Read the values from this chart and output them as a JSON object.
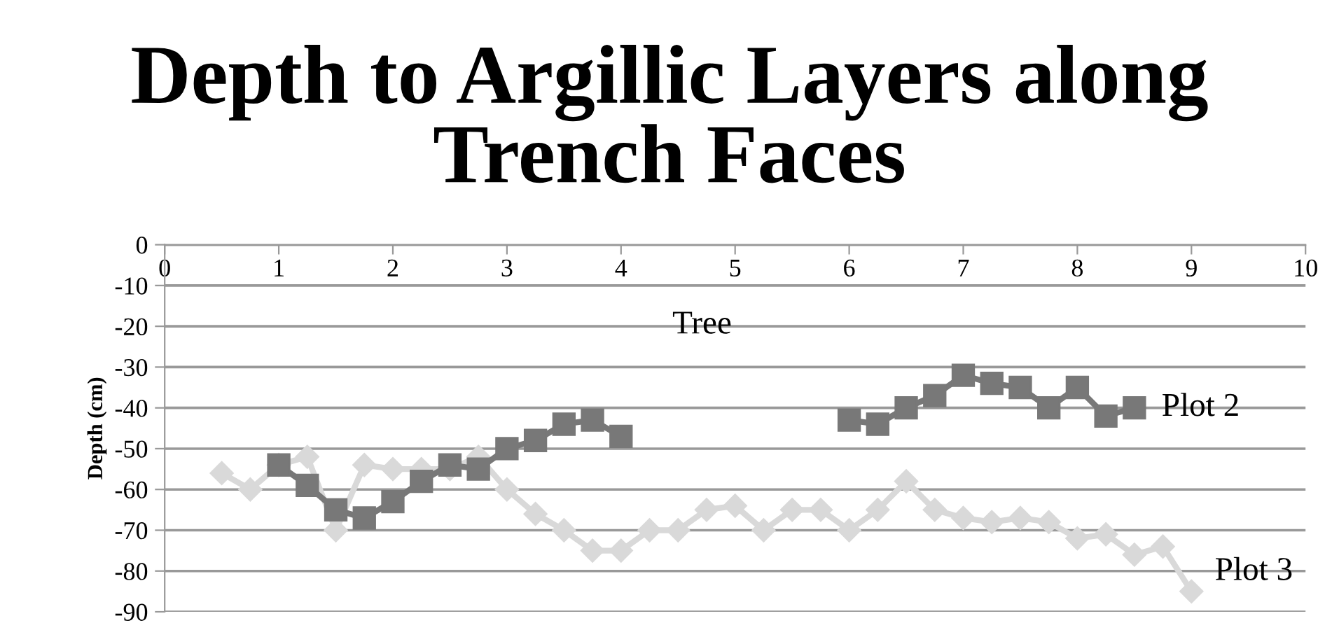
{
  "chart_data": {
    "type": "line",
    "title": "Depth to Argillic Layers along Trench Faces",
    "ylabel": "Depth (cm)",
    "annotations": [
      "Tree"
    ],
    "xlim": [
      0,
      10
    ],
    "xticks": [
      0,
      1,
      2,
      3,
      4,
      5,
      6,
      7,
      8,
      9,
      10
    ],
    "ylim": [
      -90,
      0
    ],
    "yticks": [
      -90,
      -80,
      -70,
      -60,
      -50,
      -40,
      -30,
      -20,
      -10,
      0
    ],
    "grid": "y",
    "series": [
      {
        "name": "Plot 2",
        "color": "#787878",
        "marker": "square",
        "x": [
          1,
          1.25,
          1.5,
          1.75,
          2,
          2.25,
          2.5,
          2.75,
          3,
          3.25,
          3.5,
          3.75,
          4,
          4.25,
          6,
          6.25,
          6.5,
          6.75,
          7,
          7.25,
          7.5,
          7.75,
          8,
          8.25,
          8.5
        ],
        "values": [
          -54,
          -59,
          -65,
          -67,
          -63,
          -58,
          -54,
          -55,
          -50,
          -48,
          -44,
          -43,
          -47,
          null,
          -43,
          -44,
          -40,
          -37,
          -32,
          -34,
          -35,
          -40,
          -35,
          -42,
          -40
        ]
      },
      {
        "name": "Plot 3",
        "color": "#d9d9d9",
        "marker": "diamond",
        "x": [
          0.5,
          0.75,
          1,
          1.25,
          1.5,
          1.75,
          2,
          2.25,
          2.5,
          2.75,
          3,
          3.25,
          3.5,
          3.75,
          4,
          4.25,
          4.5,
          4.75,
          5,
          5.25,
          5.5,
          5.75,
          6,
          6.25,
          6.5,
          6.75,
          7,
          7.25,
          7.5,
          7.75,
          8,
          8.25,
          8.5,
          8.75,
          9
        ],
        "values": [
          -56,
          -60,
          -54,
          -52,
          -70,
          -54,
          -55,
          -55,
          -55,
          -52,
          -60,
          -66,
          -70,
          -75,
          -75,
          -70,
          -70,
          -65,
          -64,
          -70,
          -65,
          -65,
          -70,
          -65,
          -58,
          -65,
          -67,
          -68,
          -67,
          -68,
          -72,
          -71,
          -76,
          -74,
          -85
        ]
      }
    ]
  }
}
